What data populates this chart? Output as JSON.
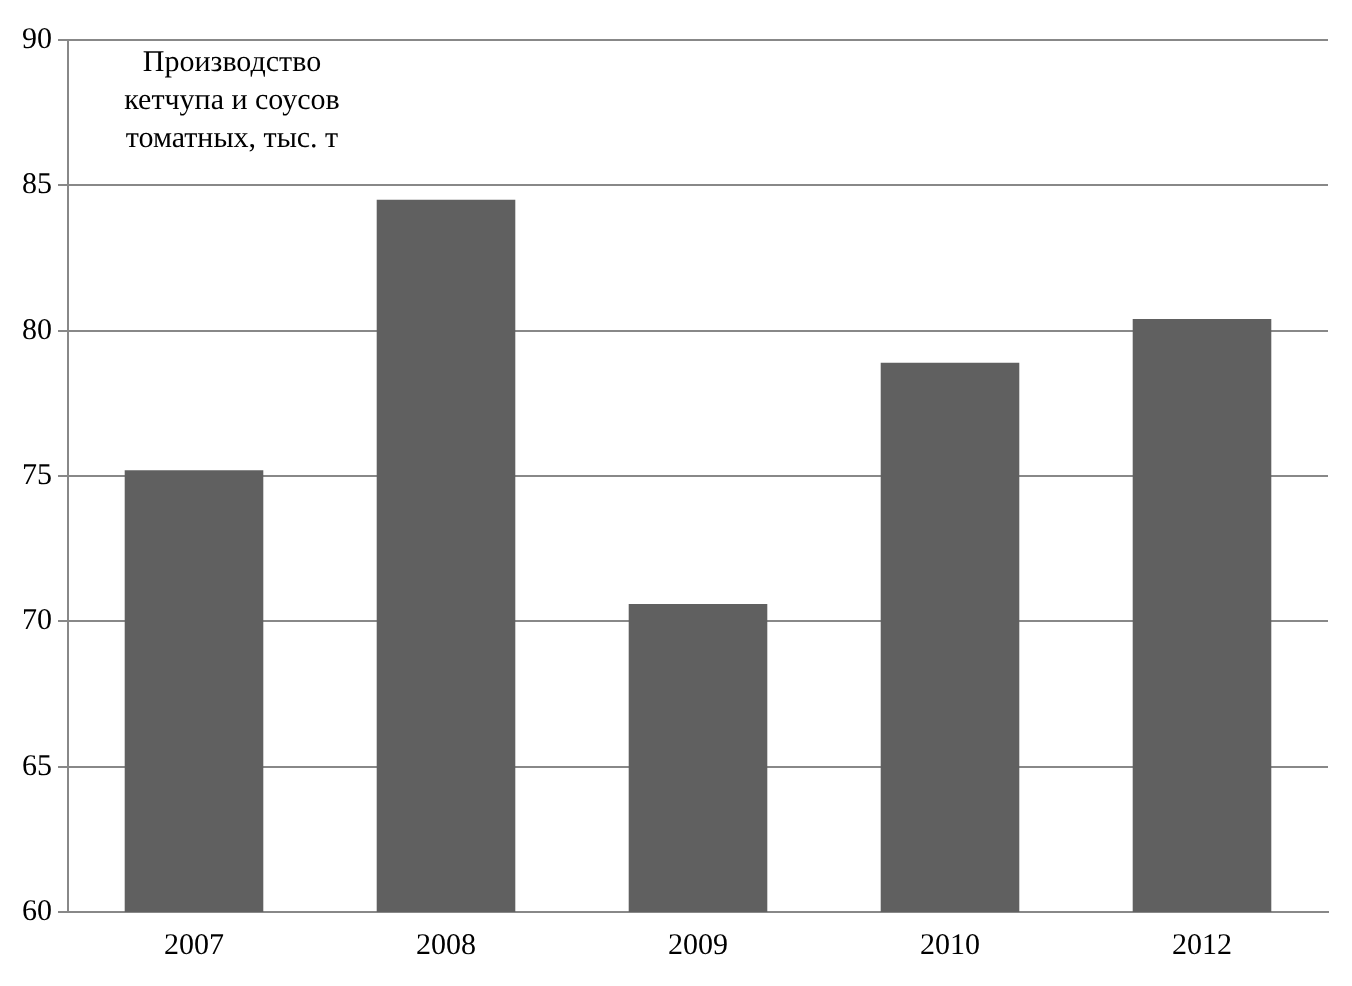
{
  "chart_data": {
    "type": "bar",
    "title": "Производство кетчупа и соусов томатных, тыс. т",
    "categories": [
      "2007",
      "2008",
      "2009",
      "2010",
      "2012"
    ],
    "values": [
      75.2,
      84.5,
      70.6,
      78.9,
      80.4
    ],
    "color": "#606060",
    "ylim": [
      60,
      90
    ],
    "yticks": [
      60,
      65,
      70,
      75,
      80,
      85,
      90
    ],
    "grid": "y",
    "legend": false
  }
}
